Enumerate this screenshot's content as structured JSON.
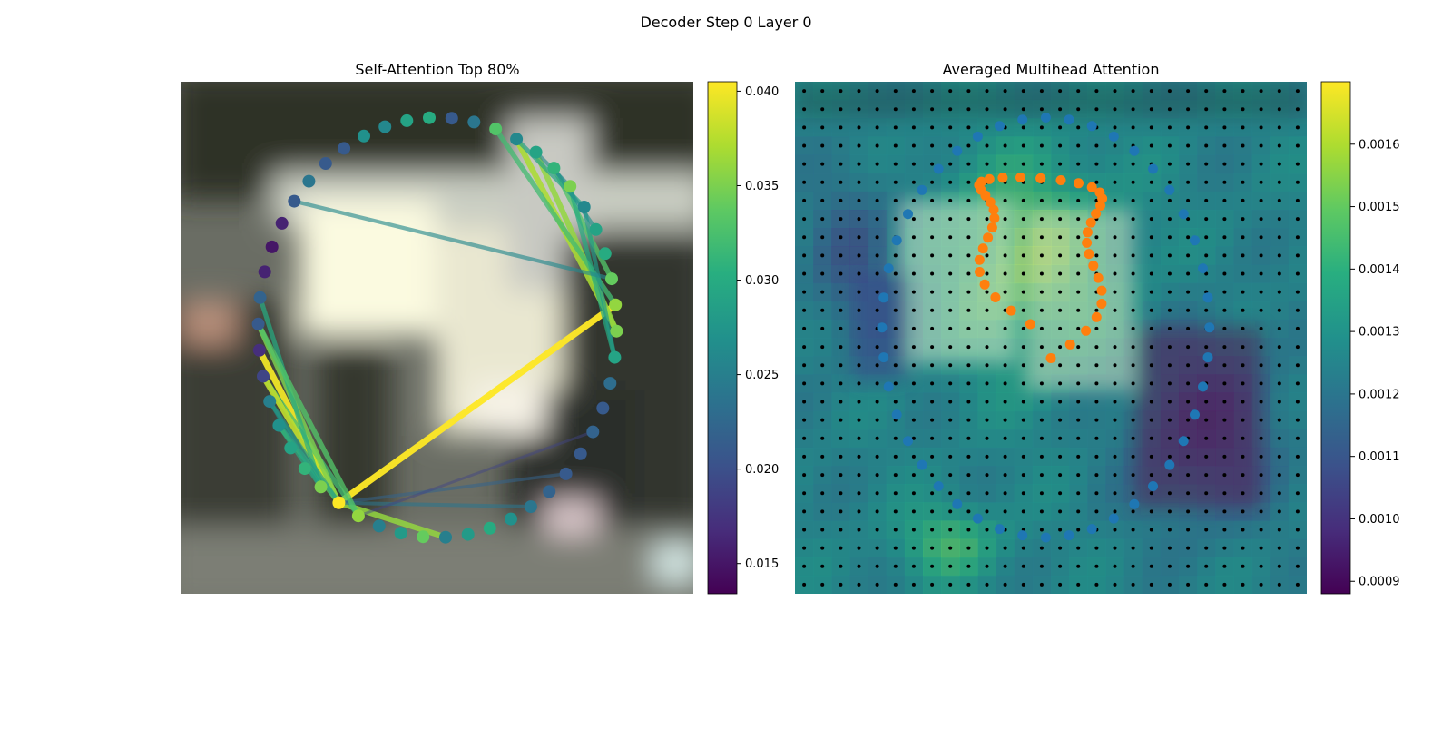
{
  "figure": {
    "title": "Decoder Step 0 Layer 0"
  },
  "chart_data": [
    {
      "type": "scatter",
      "title": "Self-Attention Top 80%",
      "xlabel": "",
      "ylabel": "",
      "grid": false,
      "background": "blurred street scene photo",
      "points": {
        "cx": 0.5,
        "cy": 0.48,
        "rx": 0.35,
        "ry": 0.41,
        "count": 50,
        "colorscale_values": [
          0.021,
          0.024,
          0.033,
          0.026,
          0.029,
          0.031,
          0.035,
          0.026,
          0.029,
          0.03,
          0.034,
          0.036,
          0.035,
          0.029,
          0.023,
          0.021,
          0.022,
          0.021,
          0.021,
          0.022,
          0.024,
          0.027,
          0.03,
          0.028,
          0.025,
          0.034,
          0.028,
          0.025,
          0.036,
          0.041,
          0.035,
          0.031,
          0.029,
          0.027,
          0.025,
          0.019,
          0.017,
          0.021,
          0.022,
          0.016,
          0.015,
          0.016,
          0.021,
          0.024,
          0.021,
          0.021,
          0.027,
          0.026,
          0.029,
          0.03
        ],
        "edges": [
          [
            29,
            11,
            0.041
          ],
          [
            29,
            24,
            0.036
          ],
          [
            29,
            36,
            0.04
          ],
          [
            28,
            35,
            0.032
          ],
          [
            29,
            35,
            0.038
          ],
          [
            29,
            37,
            0.035
          ],
          [
            29,
            33,
            0.033
          ],
          [
            30,
            38,
            0.03
          ],
          [
            30,
            34,
            0.027
          ],
          [
            29,
            20,
            0.024
          ],
          [
            29,
            18,
            0.022
          ],
          [
            28,
            16,
            0.019
          ],
          [
            12,
            3,
            0.037
          ],
          [
            12,
            4,
            0.036
          ],
          [
            11,
            2,
            0.032
          ],
          [
            10,
            5,
            0.033
          ],
          [
            13,
            6,
            0.03
          ],
          [
            4,
            6,
            0.026
          ],
          [
            13,
            7,
            0.028
          ],
          [
            3,
            7,
            0.029
          ],
          [
            5,
            8,
            0.027
          ],
          [
            10,
            42,
            0.026
          ],
          [
            28,
            37,
            0.033
          ],
          [
            30,
            33,
            0.03
          ],
          [
            29,
            34,
            0.028
          ]
        ]
      },
      "colorbar": {
        "min": 0.0134,
        "max": 0.0405,
        "ticks": [
          "0.015",
          "0.020",
          "0.025",
          "0.030",
          "0.035",
          "0.040"
        ],
        "colormap": "viridis"
      }
    },
    {
      "type": "heatmap",
      "title": "Averaged Multihead Attention",
      "xlabel": "",
      "ylabel": "",
      "grid": false,
      "overlay": {
        "blue_ring_points": 44,
        "orange_curve_points": 40,
        "grid_dots": "28x28"
      },
      "colorbar": {
        "min": 0.00088,
        "max": 0.0017,
        "ticks": [
          "0.0009",
          "0.0010",
          "0.0011",
          "0.0012",
          "0.0013",
          "0.0014",
          "0.0015",
          "0.0016"
        ],
        "colormap": "viridis"
      }
    }
  ],
  "colors": {
    "blue_points": "#1f77b4",
    "orange_points": "#ff7f0e"
  }
}
